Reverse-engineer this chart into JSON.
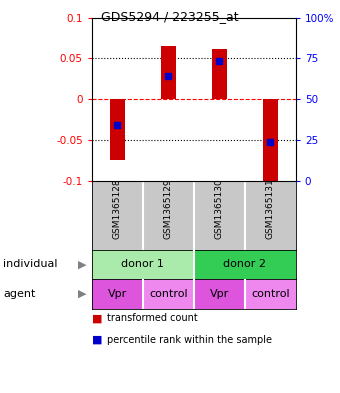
{
  "title": "GDS5294 / 223255_at",
  "samples": [
    "GSM1365128",
    "GSM1365129",
    "GSM1365130",
    "GSM1365131"
  ],
  "bar_values": [
    -0.075,
    0.065,
    0.062,
    -0.105
  ],
  "percentile_values": [
    -0.032,
    0.028,
    0.047,
    -0.052
  ],
  "ylim": [
    -0.1,
    0.1
  ],
  "yticks_left": [
    -0.1,
    -0.05,
    0,
    0.05,
    0.1
  ],
  "ytick_left_labels": [
    "-0.1",
    "-0.05",
    "0",
    "0.05",
    "0.1"
  ],
  "ytick_right_labels": [
    "0",
    "25",
    "50",
    "75",
    "100%"
  ],
  "hlines_dotted": [
    -0.05,
    0.05
  ],
  "hline_dashed": 0,
  "bar_color": "#cc0000",
  "percentile_color": "#0000cc",
  "gsm_bg_color": "#c8c8c8",
  "individual_row": [
    {
      "label": "donor 1",
      "span": [
        0,
        2
      ],
      "color": "#aaeaaa"
    },
    {
      "label": "donor 2",
      "span": [
        2,
        4
      ],
      "color": "#33cc55"
    }
  ],
  "agent_row": [
    {
      "label": "Vpr",
      "span": [
        0,
        1
      ],
      "color": "#dd55dd"
    },
    {
      "label": "control",
      "span": [
        1,
        2
      ],
      "color": "#ee88ee"
    },
    {
      "label": "Vpr",
      "span": [
        2,
        3
      ],
      "color": "#dd55dd"
    },
    {
      "label": "control",
      "span": [
        3,
        4
      ],
      "color": "#ee88ee"
    }
  ],
  "legend_items": [
    {
      "color": "#cc0000",
      "label": "transformed count"
    },
    {
      "color": "#0000cc",
      "label": "percentile rank within the sample"
    }
  ],
  "bar_width": 0.3
}
